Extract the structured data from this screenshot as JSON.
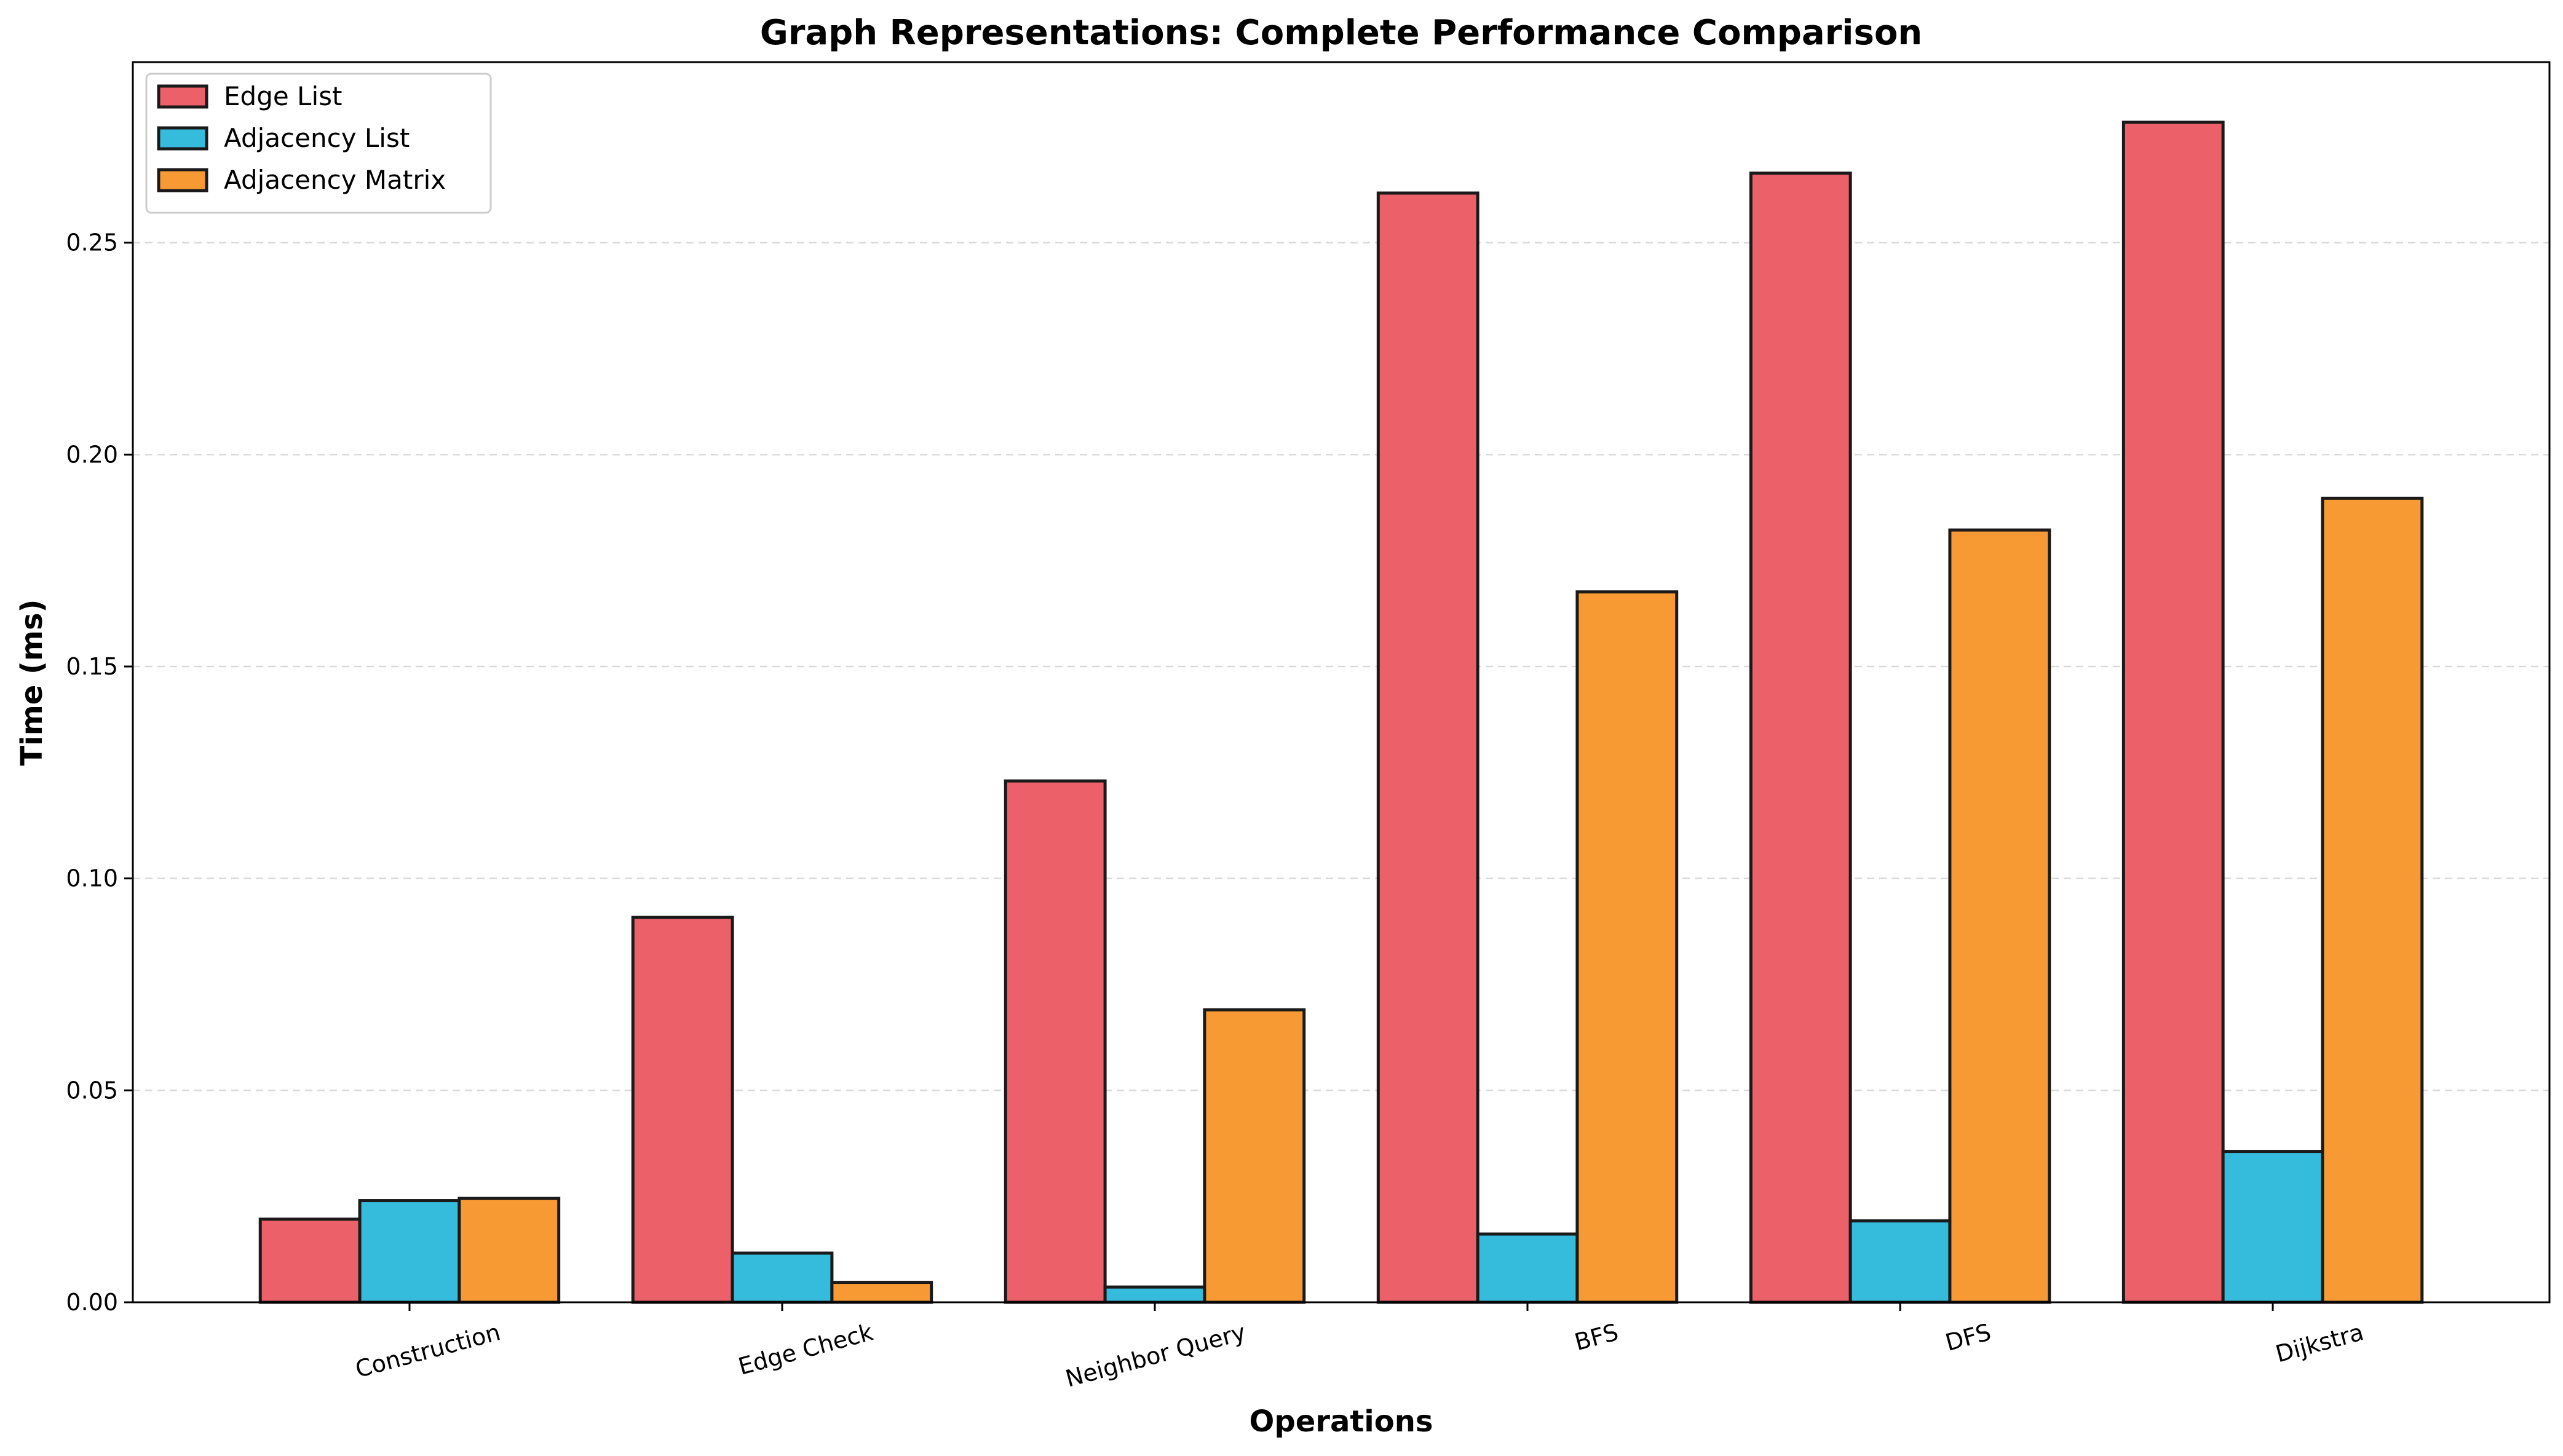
{
  "chart_data": {
    "type": "bar",
    "title": "Graph Representations: Complete Performance Comparison",
    "xlabel": "Operations",
    "ylabel": "Time (ms)",
    "categories": [
      "Construction",
      "Edge Check",
      "Neighbor Query",
      "BFS",
      "DFS",
      "Dijkstra"
    ],
    "series": [
      {
        "name": "Edge List",
        "color": "#EC606A",
        "values": [
          0.0196,
          0.0908,
          0.123,
          0.2617,
          0.2664,
          0.2784
        ]
      },
      {
        "name": "Adjacency List",
        "color": "#35BCDC",
        "values": [
          0.024,
          0.0116,
          0.0036,
          0.0161,
          0.0192,
          0.0356
        ]
      },
      {
        "name": "Adjacency Matrix",
        "color": "#F89A34",
        "values": [
          0.0245,
          0.0047,
          0.069,
          0.1676,
          0.1822,
          0.1897
        ]
      }
    ],
    "ylim": [
      0,
      0.2926
    ],
    "yticks": [
      "0.00",
      "0.05",
      "0.10",
      "0.15",
      "0.20",
      "0.25"
    ],
    "grid": true,
    "legend_position": "top-left"
  }
}
